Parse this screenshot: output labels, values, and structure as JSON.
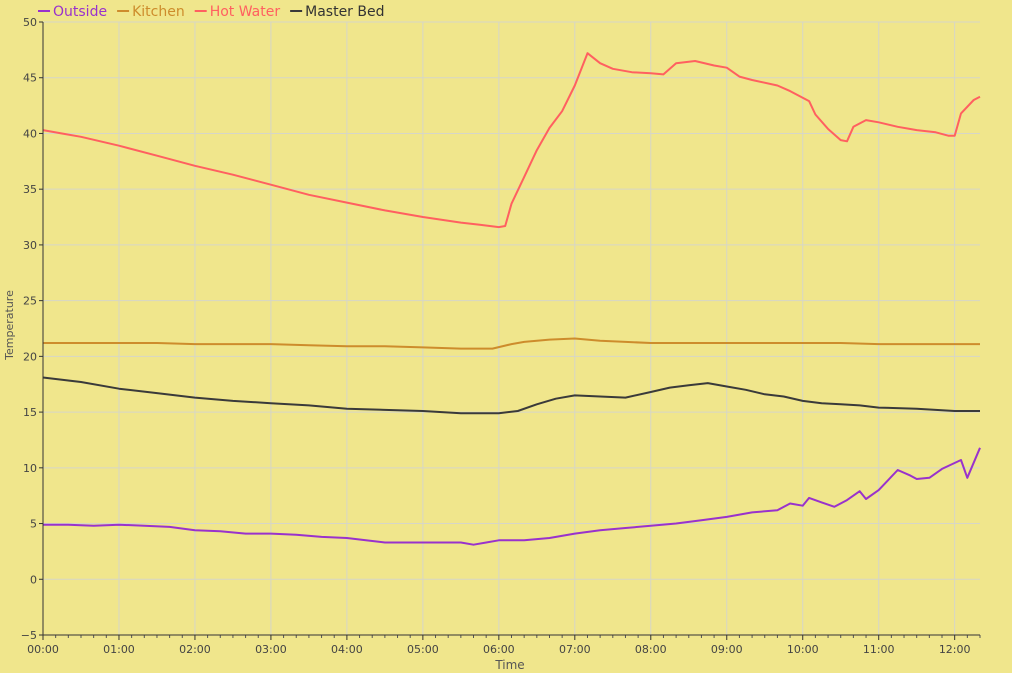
{
  "chart_data": {
    "type": "line",
    "xlabel": "Time",
    "ylabel": "Temperature",
    "ylim": [
      -5,
      50
    ],
    "xlim": [
      "00:00",
      "12:20"
    ],
    "yticks": [
      -5,
      0,
      5,
      10,
      15,
      20,
      25,
      30,
      35,
      40,
      45,
      50
    ],
    "xticks": [
      "00:00",
      "01:00",
      "02:00",
      "03:00",
      "04:00",
      "05:00",
      "06:00",
      "07:00",
      "08:00",
      "09:00",
      "10:00",
      "11:00",
      "12:00"
    ],
    "grid": true,
    "legend_position": "top-left",
    "series": [
      {
        "name": "Outside",
        "color": "#9932cc",
        "points": [
          [
            "00:00",
            4.9
          ],
          [
            "00:20",
            4.9
          ],
          [
            "00:40",
            4.8
          ],
          [
            "01:00",
            4.9
          ],
          [
            "01:20",
            4.8
          ],
          [
            "01:40",
            4.7
          ],
          [
            "02:00",
            4.4
          ],
          [
            "02:20",
            4.3
          ],
          [
            "02:40",
            4.1
          ],
          [
            "03:00",
            4.1
          ],
          [
            "03:20",
            4.0
          ],
          [
            "03:40",
            3.8
          ],
          [
            "04:00",
            3.7
          ],
          [
            "04:15",
            3.5
          ],
          [
            "04:30",
            3.3
          ],
          [
            "04:50",
            3.3
          ],
          [
            "05:10",
            3.3
          ],
          [
            "05:30",
            3.3
          ],
          [
            "05:40",
            3.1
          ],
          [
            "05:50",
            3.3
          ],
          [
            "06:00",
            3.5
          ],
          [
            "06:20",
            3.5
          ],
          [
            "06:40",
            3.7
          ],
          [
            "07:00",
            4.1
          ],
          [
            "07:20",
            4.4
          ],
          [
            "07:40",
            4.6
          ],
          [
            "08:00",
            4.8
          ],
          [
            "08:20",
            5.0
          ],
          [
            "08:40",
            5.3
          ],
          [
            "09:00",
            5.6
          ],
          [
            "09:20",
            6.0
          ],
          [
            "09:40",
            6.2
          ],
          [
            "09:50",
            6.8
          ],
          [
            "10:00",
            6.6
          ],
          [
            "10:05",
            7.3
          ],
          [
            "10:15",
            6.9
          ],
          [
            "10:25",
            6.5
          ],
          [
            "10:35",
            7.1
          ],
          [
            "10:45",
            7.9
          ],
          [
            "10:50",
            7.2
          ],
          [
            "11:00",
            8.0
          ],
          [
            "11:15",
            9.8
          ],
          [
            "11:25",
            9.3
          ],
          [
            "11:30",
            9.0
          ],
          [
            "11:40",
            9.1
          ],
          [
            "11:50",
            9.9
          ],
          [
            "12:05",
            10.7
          ],
          [
            "12:10",
            9.1
          ],
          [
            "12:20",
            11.8
          ]
        ]
      },
      {
        "name": "Kitchen",
        "color": "#cd8c2c",
        "points": [
          [
            "00:00",
            21.2
          ],
          [
            "00:15",
            21.2
          ],
          [
            "00:30",
            21.2
          ],
          [
            "01:00",
            21.2
          ],
          [
            "01:30",
            21.2
          ],
          [
            "02:00",
            21.1
          ],
          [
            "02:30",
            21.1
          ],
          [
            "03:00",
            21.1
          ],
          [
            "03:30",
            21.0
          ],
          [
            "04:00",
            20.9
          ],
          [
            "04:30",
            20.9
          ],
          [
            "05:00",
            20.8
          ],
          [
            "05:30",
            20.7
          ],
          [
            "05:55",
            20.7
          ],
          [
            "06:10",
            21.1
          ],
          [
            "06:20",
            21.3
          ],
          [
            "06:40",
            21.5
          ],
          [
            "07:00",
            21.6
          ],
          [
            "07:20",
            21.4
          ],
          [
            "07:40",
            21.3
          ],
          [
            "08:00",
            21.2
          ],
          [
            "09:00",
            21.2
          ],
          [
            "10:00",
            21.2
          ],
          [
            "10:30",
            21.2
          ],
          [
            "11:00",
            21.1
          ],
          [
            "12:00",
            21.1
          ],
          [
            "12:20",
            21.1
          ]
        ]
      },
      {
        "name": "Hot Water",
        "color": "#ff6060",
        "points": [
          [
            "00:00",
            40.3
          ],
          [
            "00:15",
            40.0
          ],
          [
            "00:30",
            39.7
          ],
          [
            "01:00",
            38.9
          ],
          [
            "01:30",
            38.0
          ],
          [
            "02:00",
            37.1
          ],
          [
            "02:30",
            36.3
          ],
          [
            "03:00",
            35.4
          ],
          [
            "03:30",
            34.5
          ],
          [
            "04:00",
            33.8
          ],
          [
            "04:30",
            33.1
          ],
          [
            "05:00",
            32.5
          ],
          [
            "05:30",
            32.0
          ],
          [
            "05:45",
            31.8
          ],
          [
            "06:00",
            31.6
          ],
          [
            "06:05",
            31.7
          ],
          [
            "06:10",
            33.7
          ],
          [
            "06:20",
            36.1
          ],
          [
            "06:30",
            38.5
          ],
          [
            "06:40",
            40.5
          ],
          [
            "06:50",
            42.0
          ],
          [
            "07:00",
            44.3
          ],
          [
            "07:10",
            47.2
          ],
          [
            "07:20",
            46.3
          ],
          [
            "07:30",
            45.8
          ],
          [
            "07:45",
            45.5
          ],
          [
            "08:00",
            45.4
          ],
          [
            "08:10",
            45.3
          ],
          [
            "08:20",
            46.3
          ],
          [
            "08:35",
            46.5
          ],
          [
            "08:50",
            46.1
          ],
          [
            "09:00",
            45.9
          ],
          [
            "09:10",
            45.1
          ],
          [
            "09:20",
            44.8
          ],
          [
            "09:40",
            44.3
          ],
          [
            "09:50",
            43.8
          ],
          [
            "10:00",
            43.2
          ],
          [
            "10:05",
            42.9
          ],
          [
            "10:10",
            41.7
          ],
          [
            "10:20",
            40.4
          ],
          [
            "10:30",
            39.4
          ],
          [
            "10:35",
            39.3
          ],
          [
            "10:40",
            40.6
          ],
          [
            "10:50",
            41.2
          ],
          [
            "11:00",
            41.0
          ],
          [
            "11:15",
            40.6
          ],
          [
            "11:30",
            40.3
          ],
          [
            "11:45",
            40.1
          ],
          [
            "11:55",
            39.8
          ],
          [
            "12:00",
            39.8
          ],
          [
            "12:05",
            41.8
          ],
          [
            "12:15",
            43.0
          ],
          [
            "12:20",
            43.3
          ]
        ]
      },
      {
        "name": "Master Bed",
        "color": "#3a3a3a",
        "points": [
          [
            "00:00",
            18.1
          ],
          [
            "00:15",
            17.9
          ],
          [
            "00:30",
            17.7
          ],
          [
            "01:00",
            17.1
          ],
          [
            "01:30",
            16.7
          ],
          [
            "02:00",
            16.3
          ],
          [
            "02:30",
            16.0
          ],
          [
            "03:00",
            15.8
          ],
          [
            "03:30",
            15.6
          ],
          [
            "04:00",
            15.3
          ],
          [
            "04:30",
            15.2
          ],
          [
            "05:00",
            15.1
          ],
          [
            "05:30",
            14.9
          ],
          [
            "06:00",
            14.9
          ],
          [
            "06:15",
            15.1
          ],
          [
            "06:30",
            15.7
          ],
          [
            "06:45",
            16.2
          ],
          [
            "07:00",
            16.5
          ],
          [
            "07:20",
            16.4
          ],
          [
            "07:40",
            16.3
          ],
          [
            "08:00",
            16.8
          ],
          [
            "08:15",
            17.2
          ],
          [
            "08:30",
            17.4
          ],
          [
            "08:45",
            17.6
          ],
          [
            "09:00",
            17.3
          ],
          [
            "09:15",
            17.0
          ],
          [
            "09:30",
            16.6
          ],
          [
            "09:45",
            16.4
          ],
          [
            "10:00",
            16.0
          ],
          [
            "10:15",
            15.8
          ],
          [
            "10:30",
            15.7
          ],
          [
            "10:45",
            15.6
          ],
          [
            "11:00",
            15.4
          ],
          [
            "11:30",
            15.3
          ],
          [
            "12:00",
            15.1
          ],
          [
            "12:20",
            15.1
          ]
        ]
      }
    ]
  }
}
